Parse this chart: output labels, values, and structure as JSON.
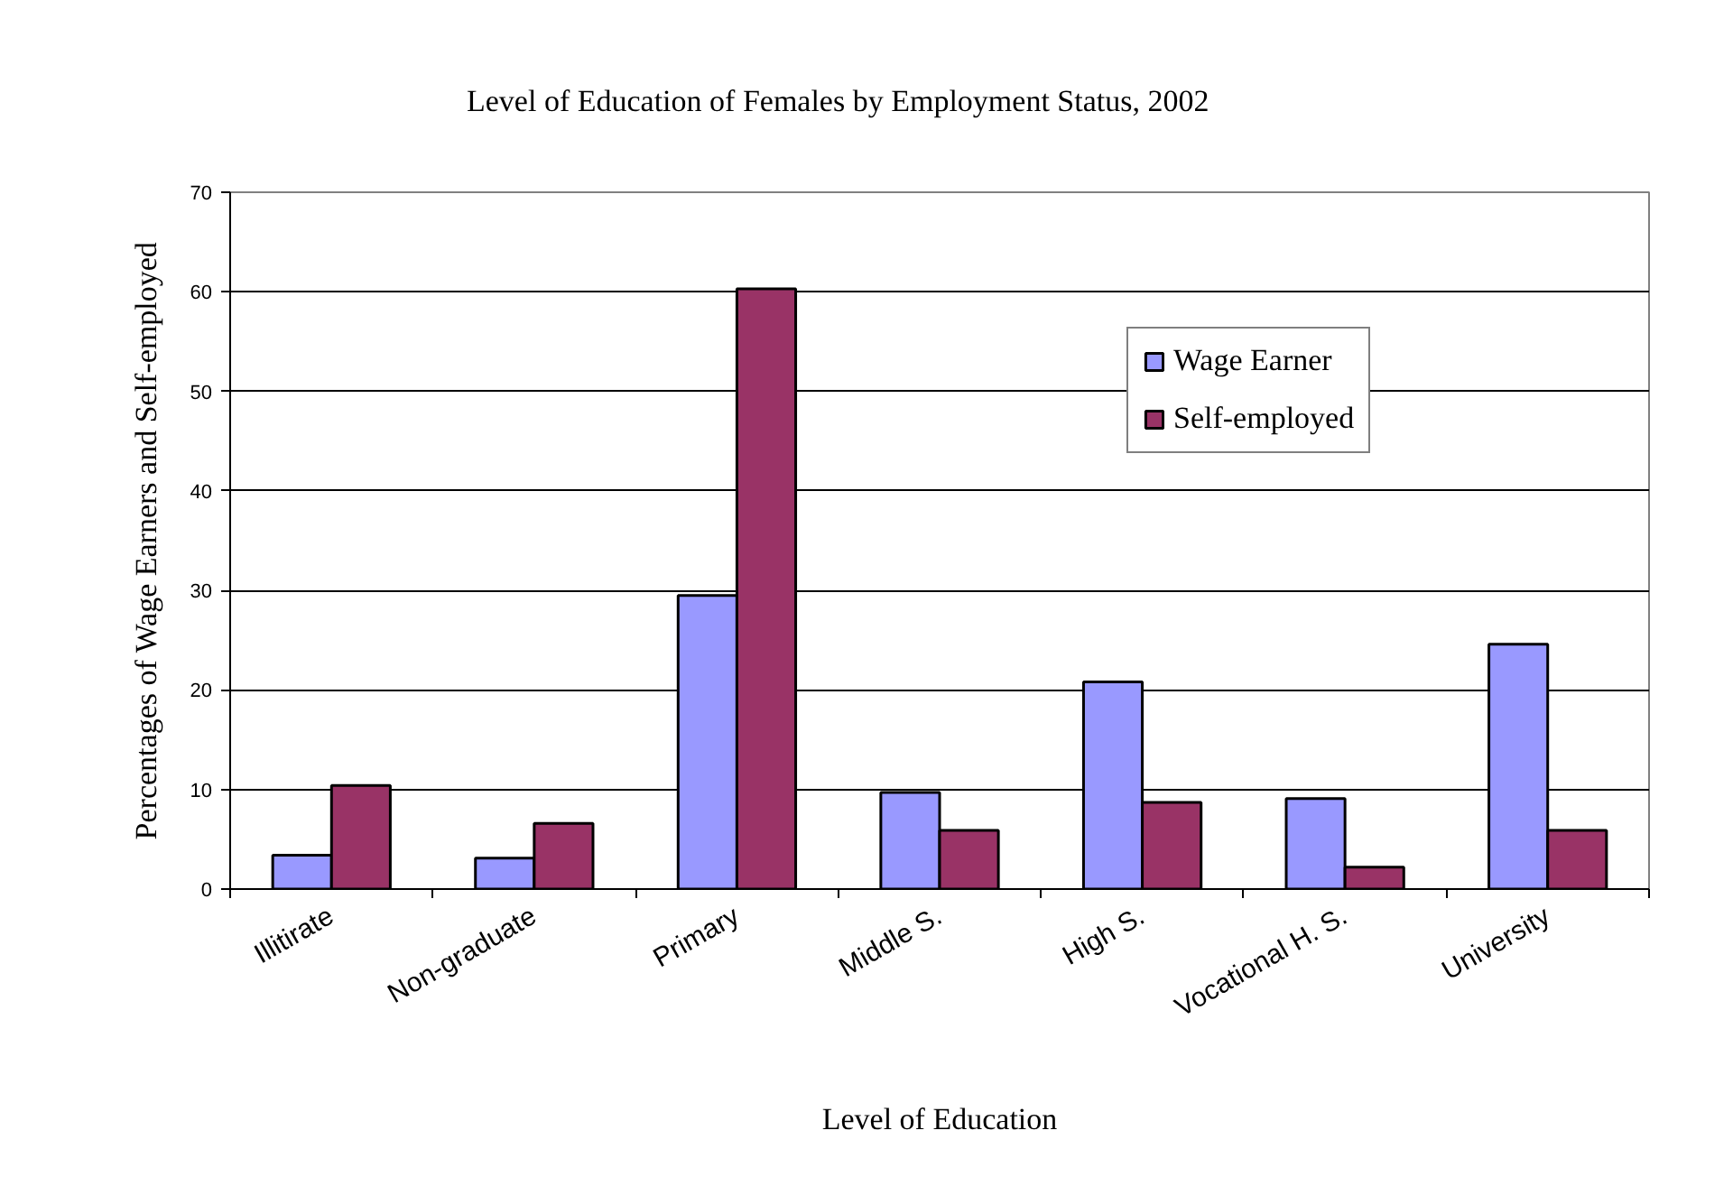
{
  "chart_data": {
    "type": "bar",
    "title": "Level of Education of Females by Employment Status, 2002",
    "xlabel": "Level of Education",
    "ylabel": "Percentages of Wage Earners and Self-employed",
    "categories": [
      "Illitirate",
      "Non-graduate",
      "Primary",
      "Middle S.",
      "High S.",
      "Vocational H. S.",
      "University"
    ],
    "series": [
      {
        "name": "Wage Earner",
        "color": "#9999ff",
        "values": [
          3.4,
          3.1,
          29.5,
          9.7,
          20.8,
          9.1,
          24.6
        ]
      },
      {
        "name": "Self-employed",
        "color": "#993366",
        "values": [
          10.4,
          6.6,
          60.3,
          5.9,
          8.7,
          2.2,
          5.9
        ]
      }
    ],
    "ylim": [
      0,
      70
    ],
    "yticks": [
      0,
      10,
      20,
      30,
      40,
      50,
      60,
      70
    ],
    "grid": "y",
    "legend": "top right"
  }
}
